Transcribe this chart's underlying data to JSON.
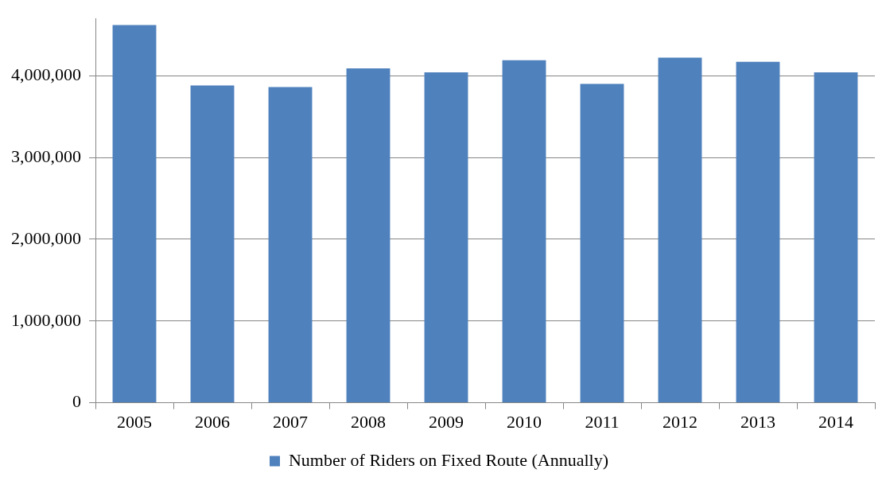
{
  "chart_data": {
    "type": "bar",
    "categories": [
      "2005",
      "2006",
      "2007",
      "2008",
      "2009",
      "2010",
      "2011",
      "2012",
      "2013",
      "2014"
    ],
    "series": [
      {
        "name": "Number of Riders on Fixed Route (Annually)",
        "color": "#4f81bd",
        "values": [
          4620000,
          3880000,
          3860000,
          4090000,
          4040000,
          4190000,
          3900000,
          4220000,
          4170000,
          4040000
        ]
      }
    ],
    "ylim": [
      0,
      4700000
    ],
    "yticks": [
      {
        "value": 0,
        "label": "0"
      },
      {
        "value": 1000000,
        "label": "1,000,000"
      },
      {
        "value": 2000000,
        "label": "2,000,000"
      },
      {
        "value": 3000000,
        "label": "3,000,000"
      },
      {
        "value": 4000000,
        "label": "4,000,000"
      }
    ],
    "grid": "y",
    "legend": "bottom"
  }
}
